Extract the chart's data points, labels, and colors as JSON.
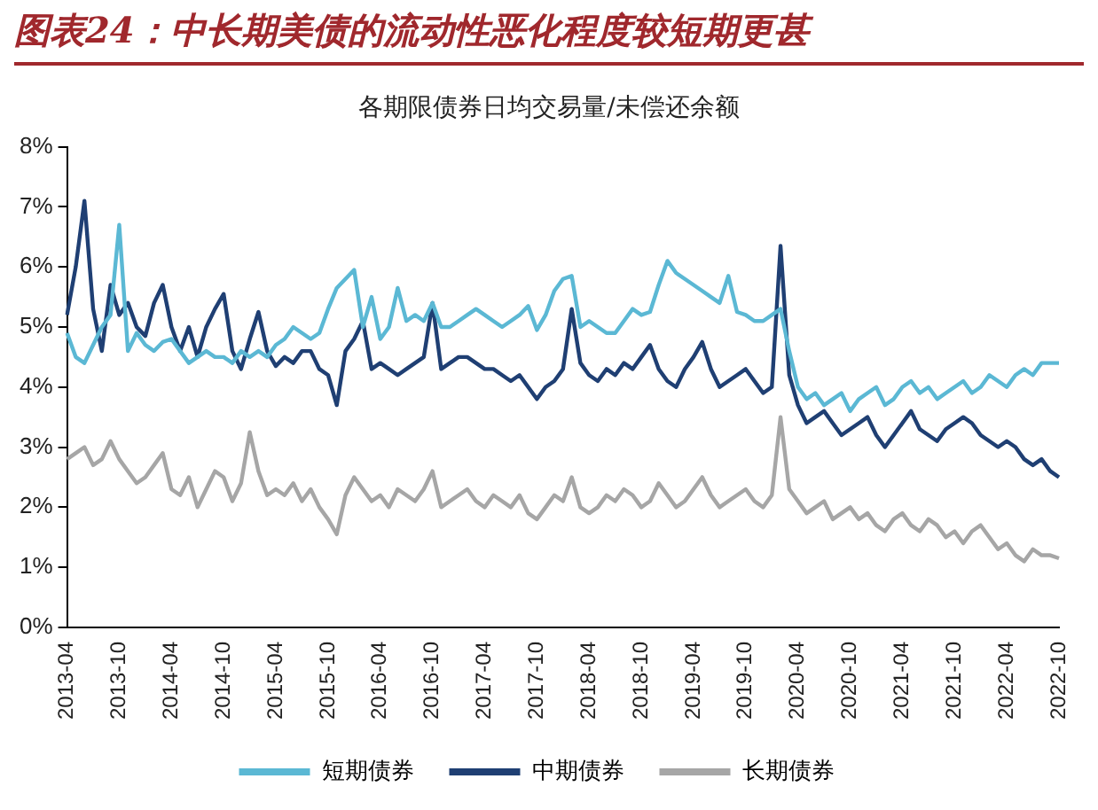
{
  "chart_data": {
    "type": "line",
    "title": "图表24：中长期美债的流动性恶化程度较短期更甚",
    "subtitle": "各期限债券日均交易量/未偿还余额",
    "categories": [
      "2013-04",
      null,
      null,
      null,
      null,
      null,
      "2013-10",
      null,
      null,
      null,
      null,
      null,
      "2014-04",
      null,
      null,
      null,
      null,
      null,
      "2014-10",
      null,
      null,
      null,
      null,
      null,
      "2015-04",
      null,
      null,
      null,
      null,
      null,
      "2015-10",
      null,
      null,
      null,
      null,
      null,
      "2016-04",
      null,
      null,
      null,
      null,
      null,
      "2016-10",
      null,
      null,
      null,
      null,
      null,
      "2017-04",
      null,
      null,
      null,
      null,
      null,
      "2017-10",
      null,
      null,
      null,
      null,
      null,
      "2018-04",
      null,
      null,
      null,
      null,
      null,
      "2018-10",
      null,
      null,
      null,
      null,
      null,
      "2019-04",
      null,
      null,
      null,
      null,
      null,
      "2019-10",
      null,
      null,
      null,
      null,
      null,
      "2020-04",
      null,
      null,
      null,
      null,
      null,
      "2020-10",
      null,
      null,
      null,
      null,
      null,
      "2021-04",
      null,
      null,
      null,
      null,
      null,
      "2021-10",
      null,
      null,
      null,
      null,
      null,
      "2022-04",
      null,
      null,
      null,
      null,
      null,
      "2022-10"
    ],
    "series": [
      {
        "name": "短期债券",
        "color": "#5bb8d4",
        "values": [
          4.9,
          4.5,
          4.4,
          4.7,
          5.0,
          5.2,
          6.7,
          4.6,
          4.9,
          4.7,
          4.6,
          4.75,
          4.8,
          4.6,
          4.4,
          4.5,
          4.6,
          4.5,
          4.5,
          4.4,
          4.6,
          4.5,
          4.6,
          4.5,
          4.7,
          4.8,
          5.0,
          4.9,
          4.8,
          4.9,
          5.3,
          5.65,
          5.8,
          5.95,
          5.0,
          5.5,
          4.8,
          5.0,
          5.65,
          5.1,
          5.2,
          5.1,
          5.4,
          5.0,
          5.0,
          5.1,
          5.2,
          5.3,
          5.2,
          5.1,
          5.0,
          5.1,
          5.2,
          5.35,
          4.95,
          5.2,
          5.6,
          5.8,
          5.85,
          5.0,
          5.1,
          5.0,
          4.9,
          4.9,
          5.1,
          5.3,
          5.2,
          5.25,
          5.7,
          6.1,
          5.9,
          5.8,
          5.7,
          5.6,
          5.5,
          5.4,
          5.85,
          5.25,
          5.2,
          5.1,
          5.1,
          5.2,
          5.3,
          4.6,
          4.0,
          3.8,
          3.9,
          3.7,
          3.8,
          3.9,
          3.6,
          3.8,
          3.9,
          4.0,
          3.7,
          3.8,
          4.0,
          4.1,
          3.9,
          4.0,
          3.8,
          3.9,
          4.0,
          4.1,
          3.9,
          4.0,
          4.2,
          4.1,
          4.0,
          4.2,
          4.3,
          4.2,
          4.4,
          4.4,
          4.4
        ]
      },
      {
        "name": "中期债券",
        "color": "#1f3f73",
        "values": [
          5.2,
          6.0,
          7.1,
          5.3,
          4.6,
          5.7,
          5.2,
          5.4,
          5.0,
          4.85,
          5.4,
          5.7,
          5.0,
          4.6,
          5.0,
          4.5,
          5.0,
          5.3,
          5.55,
          4.6,
          4.3,
          4.8,
          5.25,
          4.6,
          4.35,
          4.5,
          4.4,
          4.6,
          4.6,
          4.3,
          4.2,
          3.7,
          4.6,
          4.8,
          5.1,
          4.3,
          4.4,
          4.3,
          4.2,
          4.3,
          4.4,
          4.5,
          5.4,
          4.3,
          4.4,
          4.5,
          4.5,
          4.4,
          4.3,
          4.3,
          4.2,
          4.1,
          4.2,
          4.0,
          3.8,
          4.0,
          4.1,
          4.3,
          5.3,
          4.4,
          4.2,
          4.1,
          4.3,
          4.2,
          4.4,
          4.3,
          4.5,
          4.7,
          4.3,
          4.1,
          4.0,
          4.3,
          4.5,
          4.75,
          4.3,
          4.0,
          4.1,
          4.2,
          4.3,
          4.1,
          3.9,
          4.0,
          6.35,
          4.2,
          3.7,
          3.4,
          3.5,
          3.6,
          3.4,
          3.2,
          3.3,
          3.4,
          3.5,
          3.2,
          3.0,
          3.2,
          3.4,
          3.6,
          3.3,
          3.2,
          3.1,
          3.3,
          3.4,
          3.5,
          3.4,
          3.2,
          3.1,
          3.0,
          3.1,
          3.0,
          2.8,
          2.7,
          2.8,
          2.6,
          2.5
        ]
      },
      {
        "name": "长期债券",
        "color": "#a6a6a6",
        "values": [
          2.8,
          2.9,
          3.0,
          2.7,
          2.8,
          3.1,
          2.8,
          2.6,
          2.4,
          2.5,
          2.7,
          2.9,
          2.3,
          2.2,
          2.5,
          2.0,
          2.3,
          2.6,
          2.5,
          2.1,
          2.4,
          3.25,
          2.6,
          2.2,
          2.3,
          2.2,
          2.4,
          2.1,
          2.3,
          2.0,
          1.8,
          1.55,
          2.2,
          2.5,
          2.3,
          2.1,
          2.2,
          2.0,
          2.3,
          2.2,
          2.1,
          2.3,
          2.6,
          2.0,
          2.1,
          2.2,
          2.3,
          2.1,
          2.0,
          2.2,
          2.1,
          2.0,
          2.2,
          1.9,
          1.8,
          2.0,
          2.2,
          2.1,
          2.5,
          2.0,
          1.9,
          2.0,
          2.2,
          2.1,
          2.3,
          2.2,
          2.0,
          2.1,
          2.4,
          2.2,
          2.0,
          2.1,
          2.3,
          2.5,
          2.2,
          2.0,
          2.1,
          2.2,
          2.3,
          2.1,
          2.0,
          2.2,
          3.5,
          2.3,
          2.1,
          1.9,
          2.0,
          2.1,
          1.8,
          1.9,
          2.0,
          1.8,
          1.9,
          1.7,
          1.6,
          1.8,
          1.9,
          1.7,
          1.6,
          1.8,
          1.7,
          1.5,
          1.6,
          1.4,
          1.6,
          1.7,
          1.5,
          1.3,
          1.4,
          1.2,
          1.1,
          1.3,
          1.2,
          1.2,
          1.15
        ]
      }
    ],
    "ylim": [
      0,
      8
    ],
    "yticks": [
      {
        "value": 0,
        "label": "0%"
      },
      {
        "value": 1,
        "label": "1%"
      },
      {
        "value": 2,
        "label": "2%"
      },
      {
        "value": 3,
        "label": "3%"
      },
      {
        "value": 4,
        "label": "4%"
      },
      {
        "value": 5,
        "label": "5%"
      },
      {
        "value": 6,
        "label": "6%"
      },
      {
        "value": 7,
        "label": "7%"
      },
      {
        "value": 8,
        "label": "8%"
      }
    ],
    "grid": false,
    "legend": "bottom",
    "marker": "none",
    "line_style": "solid"
  }
}
